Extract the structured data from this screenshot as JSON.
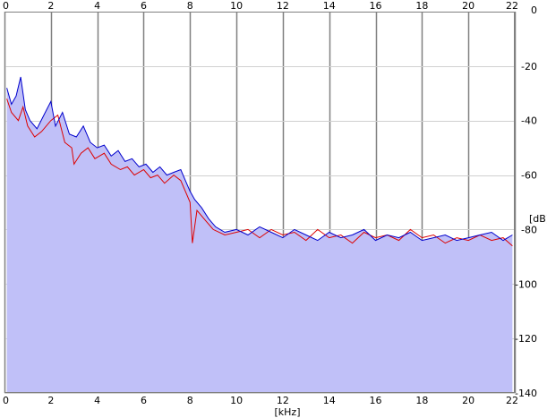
{
  "chart_data": {
    "type": "area",
    "title": "",
    "xlabel": "[kHz]",
    "ylabel": "[dB]",
    "xlim": [
      0,
      22
    ],
    "ylim": [
      -140,
      0
    ],
    "x_ticks": [
      "0",
      "2",
      "4",
      "6",
      "8",
      "10",
      "12",
      "14",
      "16",
      "18",
      "20",
      "22"
    ],
    "x_tick_values": [
      0,
      2,
      4,
      6,
      8,
      10,
      12,
      14,
      16,
      18,
      20,
      22
    ],
    "y_ticks": [
      "0",
      "-20",
      "-40",
      "-60",
      "-80",
      "-100",
      "-120",
      "-140"
    ],
    "y_tick_values": [
      0,
      -20,
      -40,
      -60,
      -80,
      -100,
      -120,
      -140
    ],
    "grid": true,
    "legend": "none",
    "series": [
      {
        "color": "#dd0000",
        "x": [
          0.1,
          0.3,
          0.6,
          0.8,
          1.0,
          1.3,
          1.6,
          2.0,
          2.3,
          2.6,
          2.9,
          3.0,
          3.3,
          3.6,
          3.9,
          4.3,
          4.6,
          5.0,
          5.3,
          5.6,
          6.0,
          6.3,
          6.6,
          6.9,
          7.3,
          7.6,
          7.8,
          8.0,
          8.1,
          8.3,
          8.6,
          9.0,
          9.5,
          10.0,
          10.5,
          11.0,
          11.5,
          12.0,
          12.5,
          13.0,
          13.5,
          14.0,
          14.5,
          15.0,
          15.5,
          16.0,
          16.5,
          17.0,
          17.5,
          18.0,
          18.5,
          19.0,
          19.5,
          20.0,
          20.5,
          21.0,
          21.5,
          21.9
        ],
        "y": [
          -32,
          -37,
          -40,
          -35,
          -42,
          -46,
          -44,
          -40,
          -38,
          -48,
          -50,
          -56,
          -52,
          -50,
          -54,
          -52,
          -56,
          -58,
          -57,
          -60,
          -58,
          -61,
          -60,
          -63,
          -60,
          -62,
          -66,
          -70,
          -85,
          -73,
          -76,
          -80,
          -82,
          -81,
          -80,
          -83,
          -80,
          -82,
          -81,
          -84,
          -80,
          -83,
          -82,
          -85,
          -81,
          -83,
          -82,
          -84,
          -80,
          -83,
          -82,
          -85,
          -83,
          -84,
          -82,
          -84,
          -83,
          -86
        ]
      },
      {
        "color": "#0000cc",
        "x": [
          0.1,
          0.3,
          0.5,
          0.7,
          0.9,
          1.1,
          1.4,
          1.7,
          2.0,
          2.2,
          2.5,
          2.8,
          3.1,
          3.4,
          3.7,
          4.0,
          4.3,
          4.6,
          4.9,
          5.2,
          5.5,
          5.8,
          6.1,
          6.4,
          6.7,
          7.0,
          7.3,
          7.6,
          7.8,
          8.0,
          8.2,
          8.5,
          8.8,
          9.1,
          9.5,
          10.0,
          10.5,
          11.0,
          11.5,
          12.0,
          12.5,
          13.0,
          13.5,
          14.0,
          14.5,
          15.0,
          15.5,
          16.0,
          16.5,
          17.0,
          17.5,
          18.0,
          18.5,
          19.0,
          19.5,
          20.0,
          20.5,
          21.0,
          21.5,
          21.9
        ],
        "y": [
          -28,
          -34,
          -31,
          -24,
          -36,
          -40,
          -43,
          -38,
          -33,
          -42,
          -37,
          -45,
          -46,
          -42,
          -48,
          -50,
          -49,
          -53,
          -51,
          -55,
          -54,
          -57,
          -56,
          -59,
          -57,
          -60,
          -59,
          -58,
          -62,
          -66,
          -69,
          -72,
          -76,
          -79,
          -81,
          -80,
          -82,
          -79,
          -81,
          -83,
          -80,
          -82,
          -84,
          -81,
          -83,
          -82,
          -80,
          -84,
          -82,
          -83,
          -81,
          -84,
          -83,
          -82,
          -84,
          -83,
          -82,
          -81,
          -84,
          -82
        ]
      }
    ]
  }
}
